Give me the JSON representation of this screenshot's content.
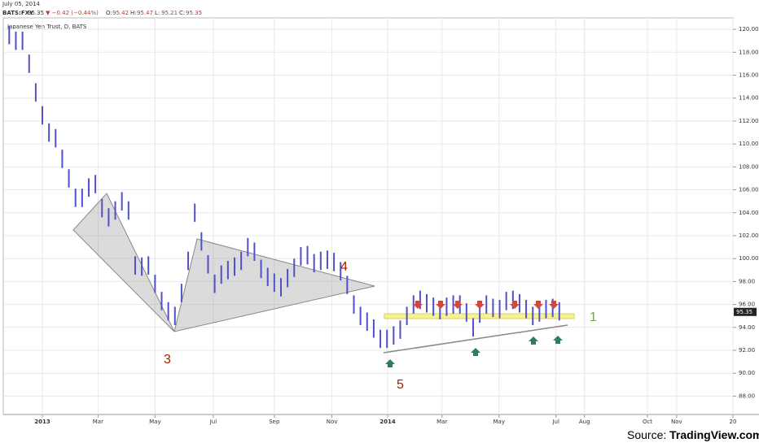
{
  "chart_data": {
    "type": "range_bar",
    "date": "July 05, 2014",
    "symbol": "BATS:FXY",
    "price": 95.35,
    "change": "▼ −0.42 (−0.44%)",
    "ohlc_labels": [
      "O:",
      "H:",
      "L:",
      "C:"
    ],
    "ohlc_values": [
      95.42,
      95.47,
      95.21,
      95.35
    ],
    "legend": "Japanese Yen Trust, D, BATS",
    "source_prefix": "Source: ",
    "source": "TradingView.com",
    "color": "#5050c8",
    "x": [
      -5,
      -4,
      -3,
      -2,
      -1,
      0,
      1,
      2,
      3,
      4,
      5,
      6,
      7,
      8,
      9,
      10,
      11,
      12,
      13,
      14,
      15,
      16,
      17,
      18,
      19,
      20,
      21,
      22,
      23,
      24,
      25,
      26,
      27,
      28,
      29,
      30,
      31,
      32,
      33,
      34,
      35,
      36,
      37,
      38,
      39,
      40,
      41,
      42,
      43,
      44,
      45,
      46,
      47,
      48,
      49,
      50,
      51,
      52,
      53,
      54,
      55,
      56,
      57,
      58,
      59,
      60,
      61,
      62,
      63,
      64,
      65,
      66,
      67,
      68,
      69,
      70,
      71,
      72,
      73,
      74,
      75,
      76,
      77,
      78
    ],
    "high": [
      120.3,
      119.8,
      119.8,
      117.8,
      115.3,
      113.3,
      111.8,
      111.3,
      109.5,
      107.8,
      106.1,
      106.1,
      107.0,
      107.3,
      105.2,
      104.4,
      105.0,
      105.8,
      105.0,
      100.2,
      100.1,
      100.2,
      98.6,
      97.1,
      96.2,
      95.8,
      97.8,
      100.6,
      104.8,
      102.3,
      100.3,
      98.6,
      99.4,
      99.8,
      100.1,
      100.6,
      101.8,
      101.4,
      99.9,
      99.2,
      98.7,
      98.3,
      99.1,
      100.0,
      101.0,
      101.1,
      100.4,
      100.6,
      100.7,
      100.5,
      99.7,
      98.5,
      96.8,
      95.8,
      95.3,
      94.7,
      93.8,
      93.8,
      94.1,
      94.6,
      95.8,
      96.8,
      97.2,
      96.9,
      96.6,
      96.3,
      96.6,
      96.8,
      96.8,
      96.1,
      94.8,
      96.0,
      96.8,
      96.5,
      96.4,
      97.1,
      97.2,
      96.9,
      96.4,
      95.8,
      96.1,
      96.4,
      96.5,
      96.2
    ],
    "low": [
      118.7,
      118.2,
      118.2,
      116.2,
      113.7,
      111.7,
      110.2,
      109.7,
      107.9,
      106.2,
      104.5,
      104.5,
      105.4,
      105.7,
      103.6,
      102.8,
      103.4,
      104.2,
      103.4,
      98.6,
      98.5,
      98.6,
      97.0,
      95.5,
      94.6,
      94.2,
      96.2,
      99.0,
      103.2,
      100.7,
      98.7,
      97.0,
      97.8,
      98.2,
      98.5,
      99.0,
      100.2,
      99.8,
      98.3,
      97.6,
      97.1,
      96.7,
      97.5,
      98.4,
      99.4,
      99.5,
      98.8,
      99.0,
      99.1,
      98.9,
      98.1,
      96.9,
      95.2,
      94.2,
      93.7,
      93.1,
      92.2,
      92.2,
      92.5,
      93.0,
      94.2,
      95.2,
      95.6,
      95.3,
      95.0,
      94.7,
      95.0,
      95.2,
      95.2,
      94.5,
      93.2,
      94.4,
      95.2,
      94.9,
      94.8,
      95.5,
      95.6,
      95.3,
      94.8,
      94.2,
      94.5,
      94.8,
      94.9,
      94.6
    ],
    "xlim": [
      -5.9,
      104.2
    ],
    "xticks": [
      {
        "value": 0,
        "label": "2013"
      },
      {
        "value": 8.4,
        "label": "Mar"
      },
      {
        "value": 17,
        "label": "May"
      },
      {
        "value": 25.8,
        "label": "Jul"
      },
      {
        "value": 35,
        "label": "Sep"
      },
      {
        "value": 43.7,
        "label": "Nov"
      },
      {
        "value": 52.1,
        "label": "2014"
      },
      {
        "value": 60.3,
        "label": "Mar"
      },
      {
        "value": 68.9,
        "label": "May"
      },
      {
        "value": 77.5,
        "label": "Jul"
      },
      {
        "value": 81.8,
        "label": "Aug"
      },
      {
        "value": 91.3,
        "label": "Oct"
      },
      {
        "value": 95.7,
        "label": "Nov"
      },
      {
        "value": 104.2,
        "label": "20"
      }
    ],
    "ylim": [
      86.4,
      121.0
    ],
    "yticks": [
      {
        "value": 88,
        "label": "88.00"
      },
      {
        "value": 90,
        "label": "90.00"
      },
      {
        "value": 92,
        "label": "92.00"
      },
      {
        "value": 94,
        "label": "94.00"
      },
      {
        "value": 96,
        "label": "96.00"
      },
      {
        "value": 98,
        "label": "98.00"
      },
      {
        "value": 100,
        "label": "100.00"
      },
      {
        "value": 102,
        "label": "102.00"
      },
      {
        "value": 104,
        "label": "104.00"
      },
      {
        "value": 106,
        "label": "106.00"
      },
      {
        "value": 108,
        "label": "108.00"
      },
      {
        "value": 110,
        "label": "110.00"
      },
      {
        "value": 112,
        "label": "112.00"
      },
      {
        "value": 114,
        "label": "114.00"
      },
      {
        "value": 116,
        "label": "116.00"
      },
      {
        "value": 118,
        "label": "118.00"
      },
      {
        "value": 120,
        "label": "120.00"
      }
    ],
    "annotations": [
      "1",
      "3",
      "4",
      "5"
    ]
  }
}
